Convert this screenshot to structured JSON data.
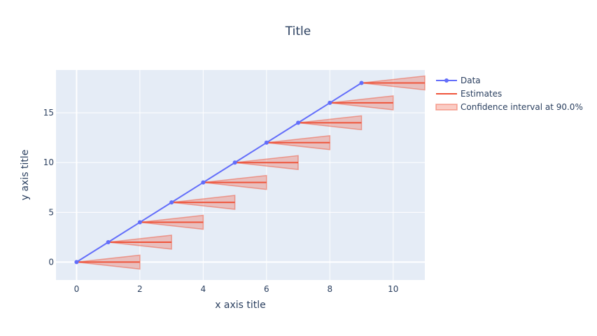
{
  "chart_data": {
    "type": "line",
    "title": "Title",
    "xlabel": "x axis title",
    "ylabel": "y axis title",
    "xlim": [
      -0.65,
      11
    ],
    "ylim": [
      -1.8,
      19.3
    ],
    "xticks": [
      0,
      2,
      4,
      6,
      8,
      10
    ],
    "yticks": [
      0,
      5,
      10,
      15
    ],
    "grid": true,
    "legend_position": "top-right",
    "series": [
      {
        "name": "Data",
        "type": "line+markers",
        "color": "#636efa",
        "x": [
          0,
          1,
          2,
          3,
          4,
          5,
          6,
          7,
          8,
          9
        ],
        "y": [
          0,
          2,
          4,
          6,
          8,
          10,
          12,
          14,
          16,
          18
        ]
      },
      {
        "name": "Estimates",
        "type": "line",
        "color": "#ef553b",
        "segments": [
          {
            "x": [
              0,
              2
            ],
            "y": [
              0,
              0
            ]
          },
          {
            "x": [
              1,
              3
            ],
            "y": [
              2,
              2
            ]
          },
          {
            "x": [
              2,
              4
            ],
            "y": [
              4,
              4
            ]
          },
          {
            "x": [
              3,
              5
            ],
            "y": [
              6,
              6
            ]
          },
          {
            "x": [
              4,
              6
            ],
            "y": [
              8,
              8
            ]
          },
          {
            "x": [
              5,
              7
            ],
            "y": [
              10,
              10
            ]
          },
          {
            "x": [
              6,
              8
            ],
            "y": [
              12,
              12
            ]
          },
          {
            "x": [
              7,
              9
            ],
            "y": [
              14,
              14
            ]
          },
          {
            "x": [
              8,
              10
            ],
            "y": [
              16,
              16
            ]
          },
          {
            "x": [
              9,
              11
            ],
            "y": [
              18,
              18
            ]
          }
        ]
      },
      {
        "name": "Confidence interval at 90.0%",
        "type": "band",
        "color": "#ef553b",
        "bands": [
          {
            "x_start": 0,
            "y_start": 0,
            "x_end": 2,
            "upper": 0.7,
            "lower": -0.7
          },
          {
            "x_start": 1,
            "y_start": 2,
            "x_end": 3,
            "upper": 2.7,
            "lower": 1.3
          },
          {
            "x_start": 2,
            "y_start": 4,
            "x_end": 4,
            "upper": 4.7,
            "lower": 3.3
          },
          {
            "x_start": 3,
            "y_start": 6,
            "x_end": 5,
            "upper": 6.7,
            "lower": 5.3
          },
          {
            "x_start": 4,
            "y_start": 8,
            "x_end": 6,
            "upper": 8.7,
            "lower": 7.3
          },
          {
            "x_start": 5,
            "y_start": 10,
            "x_end": 7,
            "upper": 10.7,
            "lower": 9.3
          },
          {
            "x_start": 6,
            "y_start": 12,
            "x_end": 8,
            "upper": 12.7,
            "lower": 11.3
          },
          {
            "x_start": 7,
            "y_start": 14,
            "x_end": 9,
            "upper": 14.7,
            "lower": 13.3
          },
          {
            "x_start": 8,
            "y_start": 16,
            "x_end": 10,
            "upper": 16.7,
            "lower": 15.3
          },
          {
            "x_start": 9,
            "y_start": 18,
            "x_end": 11,
            "upper": 18.7,
            "lower": 17.3
          }
        ]
      }
    ]
  }
}
